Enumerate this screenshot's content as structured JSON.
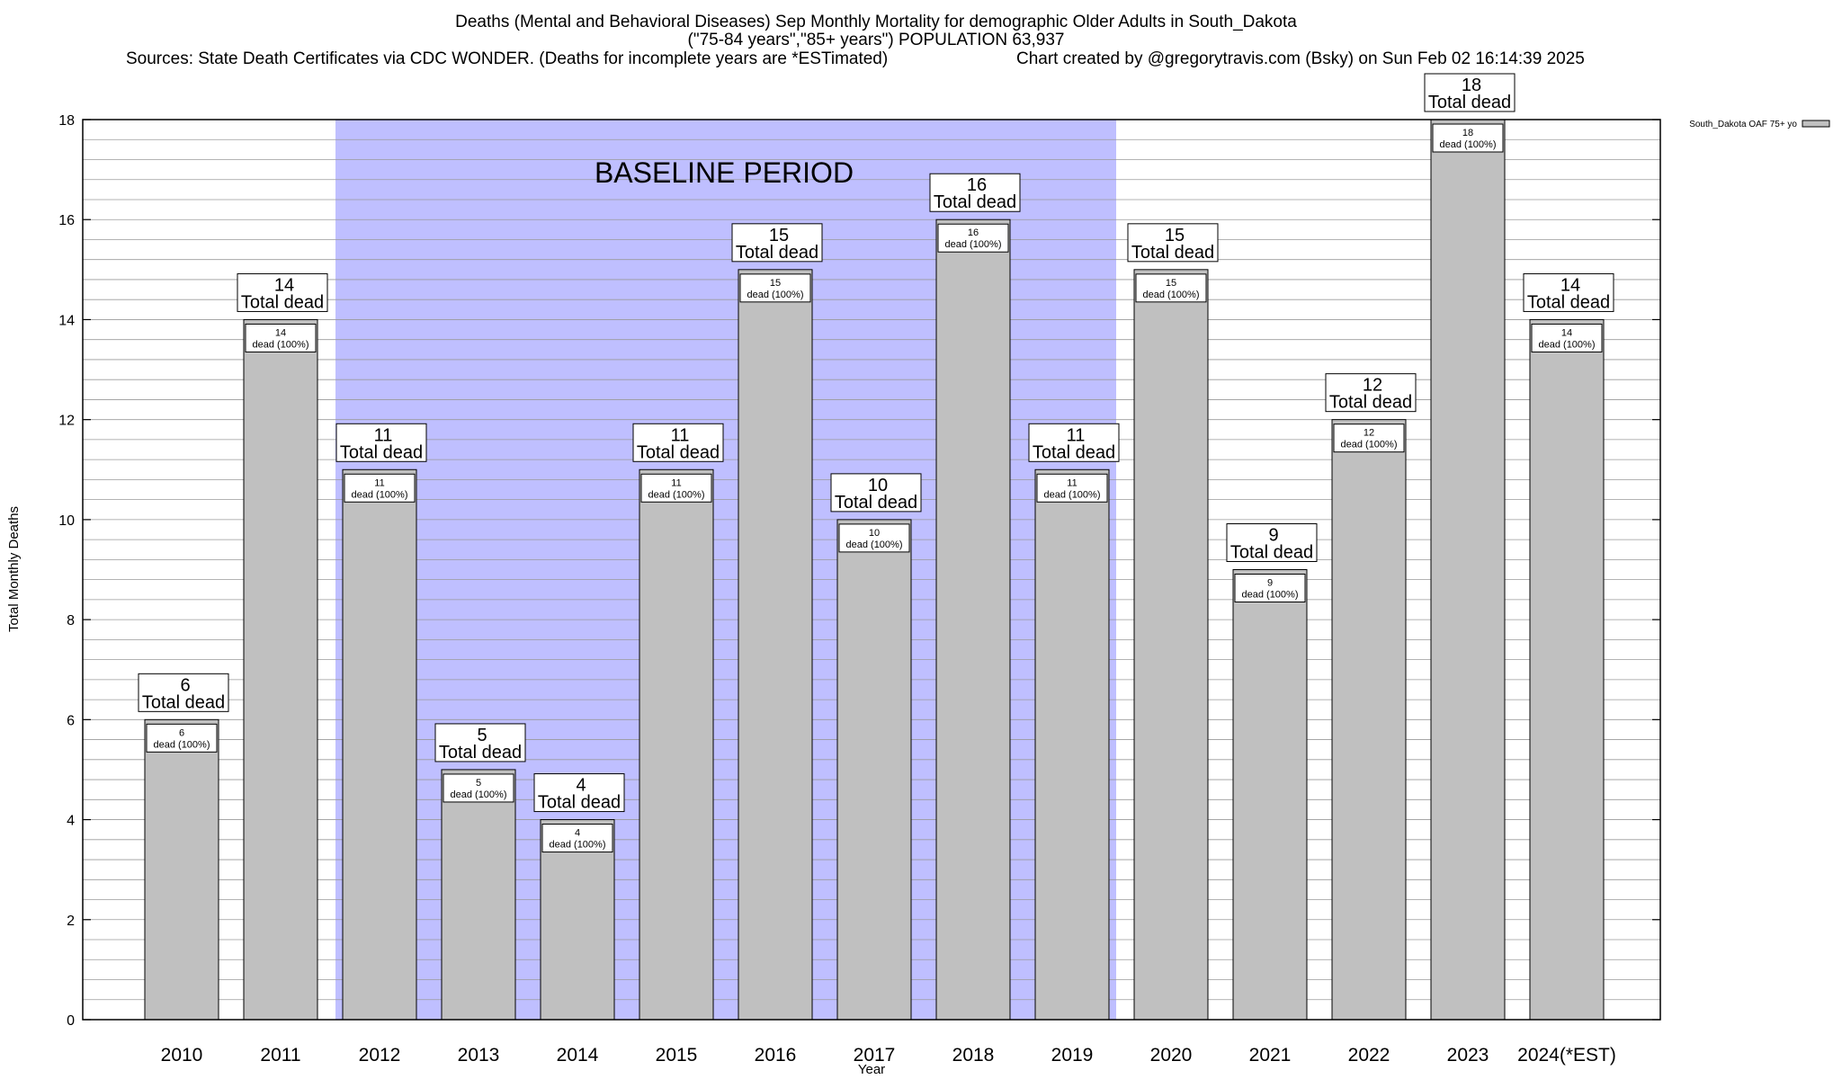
{
  "chart_data": {
    "type": "bar",
    "title": "Deaths (Mental and Behavioral Diseases) Sep Monthly Mortality for demographic Older Adults in South_Dakota",
    "subtitle": "(\"75-84 years\",\"85+ years\") POPULATION 63,937",
    "sources": "Sources: State Death Certificates via CDC WONDER. (Deaths for incomplete years are *ESTimated)",
    "credit": "Chart created by @gregorytravis.com (Bsky) on Sun Feb 02 16:14:39 2025",
    "xlabel": "Year",
    "ylabel": "Total Monthly Deaths",
    "ylim": [
      0,
      18
    ],
    "y_ticks": [
      0,
      2,
      4,
      6,
      8,
      10,
      12,
      14,
      16,
      18
    ],
    "y_minor_step": 0.4,
    "categories": [
      "2010",
      "2011",
      "2012",
      "2013",
      "2014",
      "2015",
      "2016",
      "2017",
      "2018",
      "2019",
      "2020",
      "2021",
      "2022",
      "2023",
      "2024(*EST)"
    ],
    "series": [
      {
        "name": "South_Dakota OAF 75+ yo",
        "values": [
          6,
          14,
          11,
          5,
          4,
          11,
          15,
          10,
          16,
          11,
          15,
          9,
          12,
          18,
          14
        ],
        "inner_labels": [
          "6",
          "14",
          "11",
          "5",
          "4",
          "11",
          "15",
          "10",
          "16",
          "11",
          "15",
          "9",
          "12",
          "18",
          "14"
        ],
        "inner_sublabel": "dead (100%)",
        "color": "#c0c0c0"
      }
    ],
    "total_labels": [
      "6",
      "14",
      "11",
      "5",
      "4",
      "11",
      "15",
      "10",
      "16",
      "11",
      "15",
      "9",
      "12",
      "18",
      "14"
    ],
    "total_sublabel": "Total dead",
    "baseline": {
      "label": "BASELINE PERIOD",
      "start": "2012",
      "end": "2019",
      "color": "#bfbfff"
    },
    "legend": {
      "position": "top-right outside",
      "entries": [
        "South_Dakota OAF 75+ yo"
      ]
    },
    "grid": true
  }
}
